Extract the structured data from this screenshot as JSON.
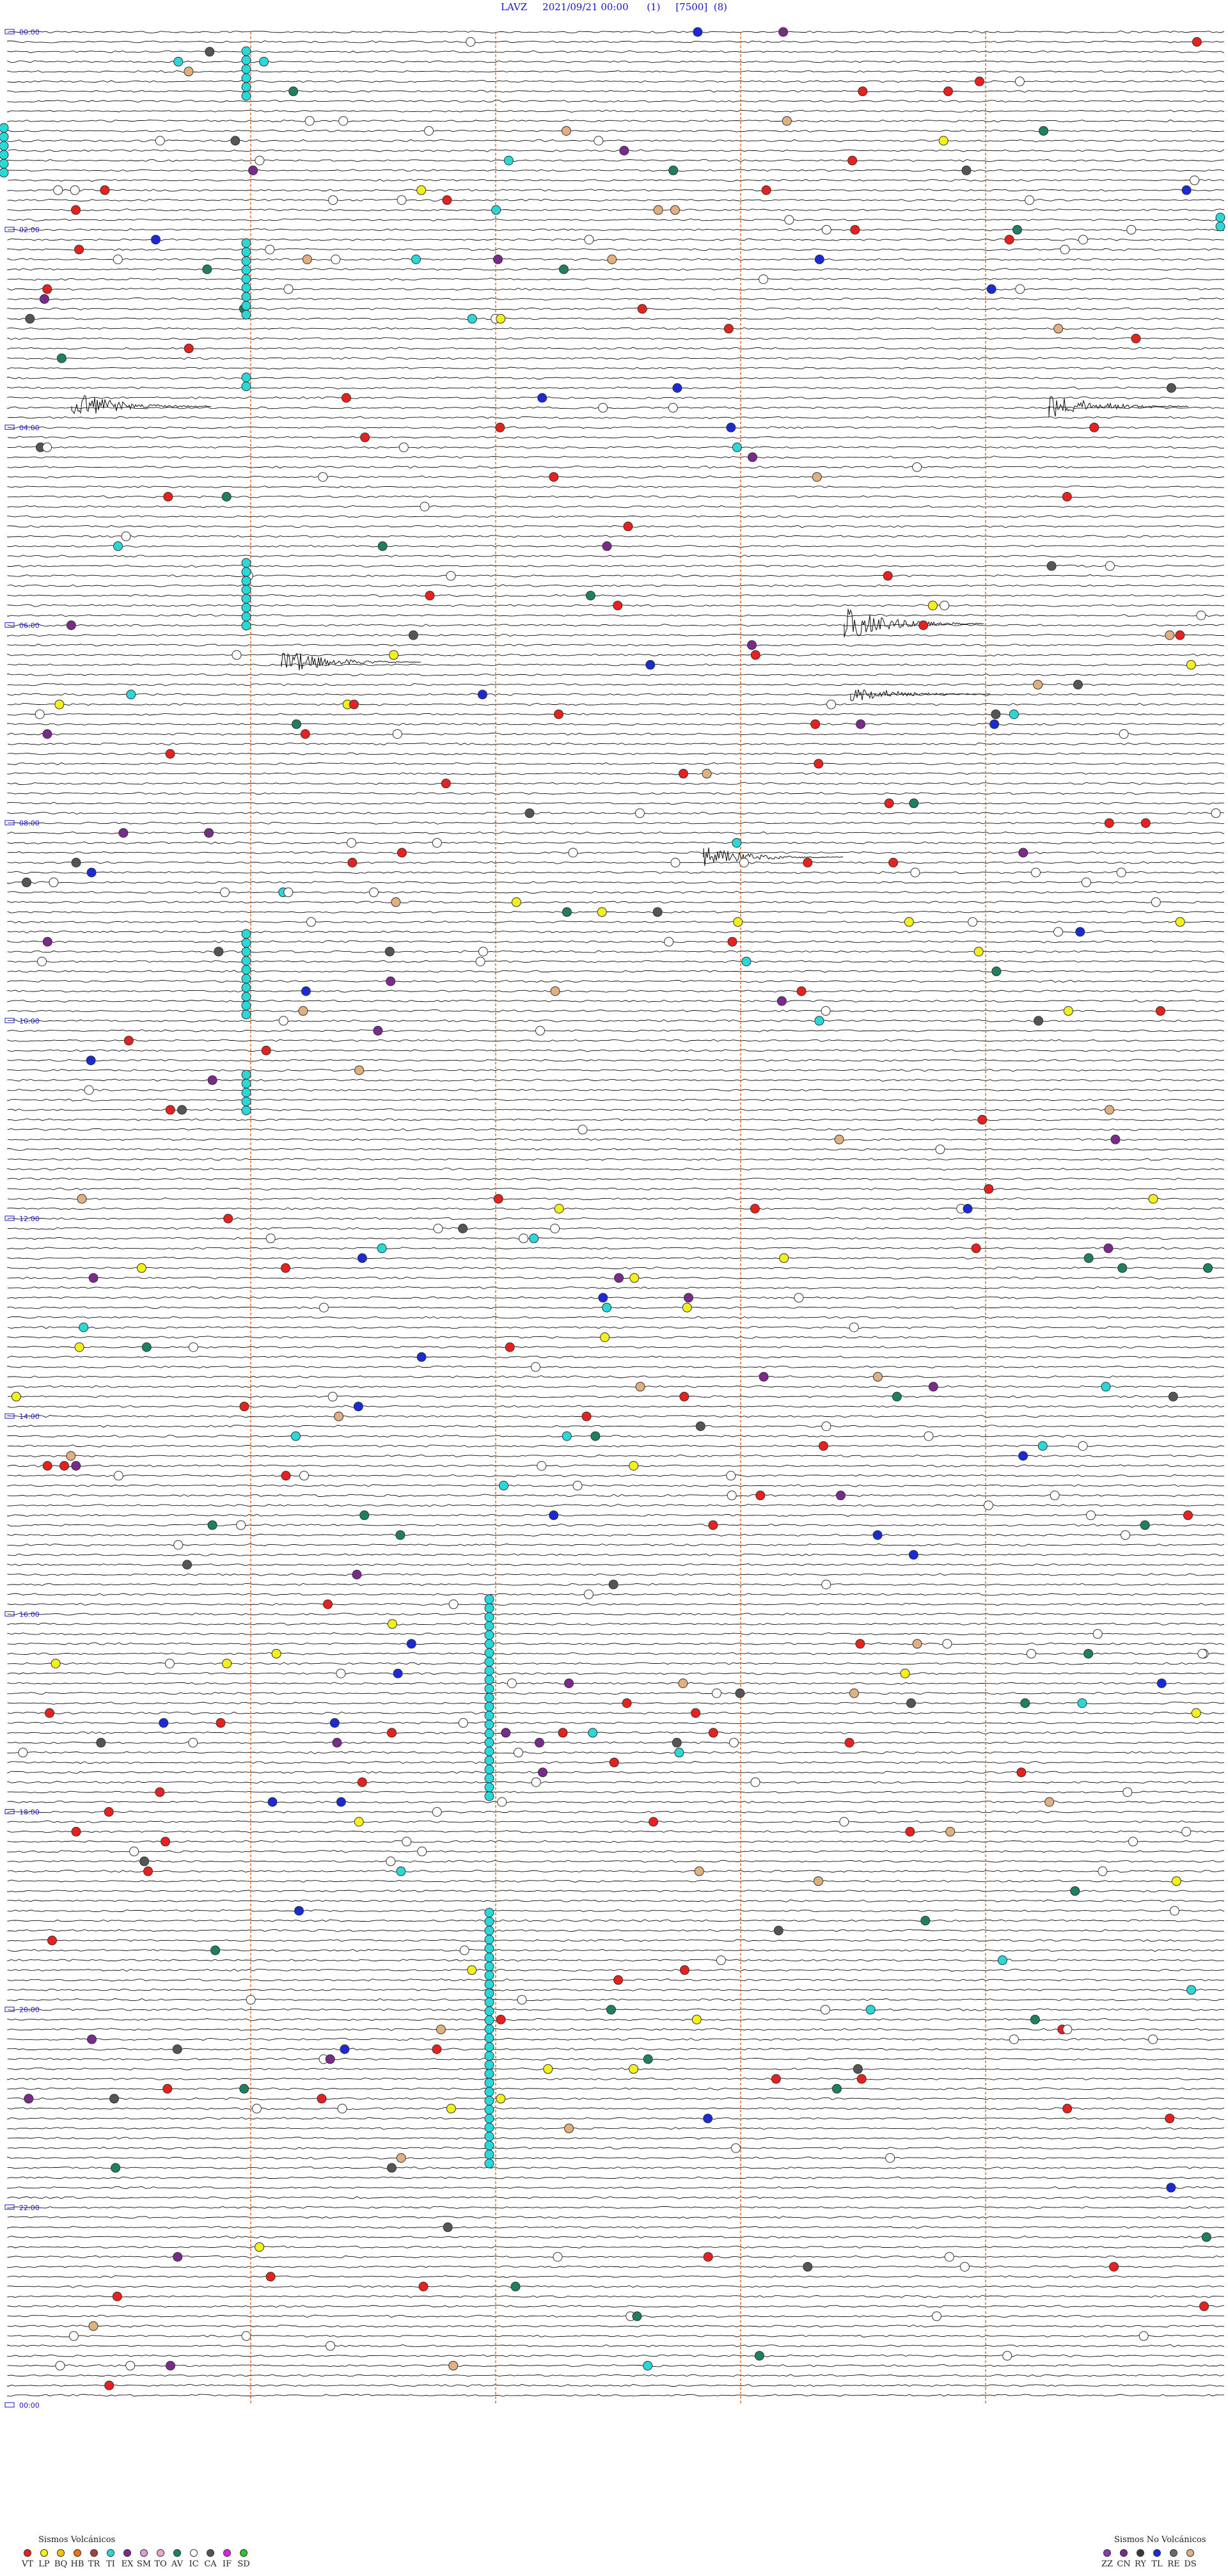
{
  "header": {
    "station": "LAVZ",
    "datetime": "2021/09/21 00:00",
    "flag1": "(1)",
    "scale": "[7500]",
    "flag2": "(8)"
  },
  "time_labels": [
    "00:00",
    "02:00",
    "04:00",
    "06:00",
    "08:00",
    "10:00",
    "12:00",
    "14:00",
    "16:00",
    "18:00",
    "20:00",
    "22:00",
    "00:00"
  ],
  "colors": {
    "trace": "#111111",
    "marker_line": "#e0601a",
    "time_label": "#1a1ad0",
    "event_stroke": "#333333"
  },
  "legend_volcanic": {
    "title": "Sismos Volcánicos",
    "items": [
      {
        "code": "VT",
        "color": "#e8201e"
      },
      {
        "code": "LP",
        "color": "#f4f01a"
      },
      {
        "code": "BQ",
        "color": "#f5c400"
      },
      {
        "code": "HB",
        "color": "#f07010"
      },
      {
        "code": "TR",
        "color": "#a54040"
      },
      {
        "code": "TI",
        "color": "#2ad8d8"
      },
      {
        "code": "EX",
        "color": "#7a2a8a"
      },
      {
        "code": "SM",
        "color": "#d8a0d8"
      },
      {
        "code": "TO",
        "color": "#e8a8d0"
      },
      {
        "code": "AV",
        "color": "#1e8060"
      },
      {
        "code": "IC",
        "color": "#ffffff"
      },
      {
        "code": "CA",
        "color": "#555555"
      },
      {
        "code": "IF",
        "color": "#e020e0"
      },
      {
        "code": "SD",
        "color": "#30c030"
      }
    ]
  },
  "legend_nonvolcanic": {
    "title": "Sismos No Volcánicos",
    "items": [
      {
        "code": "ZZ",
        "color": "#8a3ab0"
      },
      {
        "code": "CN",
        "color": "#7a2a8a"
      },
      {
        "code": "RY",
        "color": "#3a3a3a"
      },
      {
        "code": "TL",
        "color": "#1a2ad8"
      },
      {
        "code": "RE",
        "color": "#6a6a6a"
      },
      {
        "code": "DS",
        "color": "#e0b080"
      }
    ]
  }
}
